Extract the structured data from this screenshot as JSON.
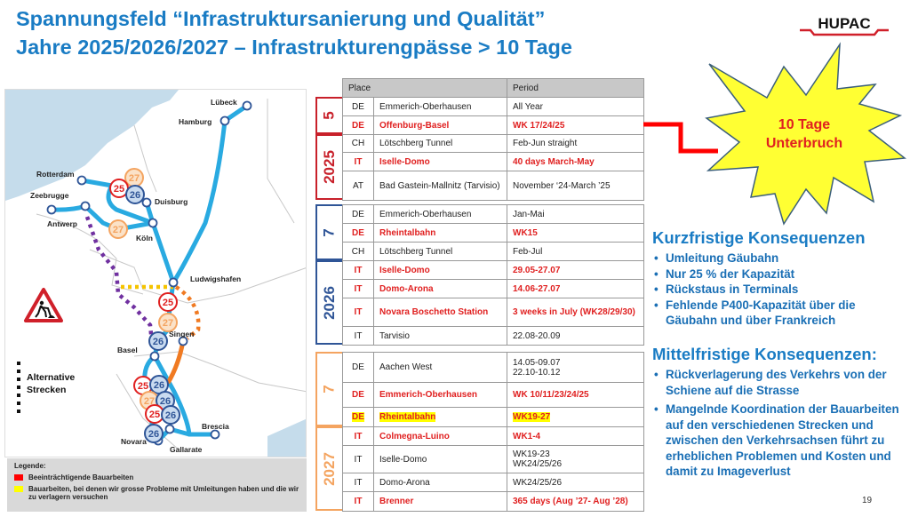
{
  "header": {
    "title_line1": "Spannungsfeld “Infrastruktursanierung und Qualität”",
    "title_line2": "Jahre 2025/2026/2027 – Infrastrukturengpässe > 10 Tage",
    "logo": "HUPAC"
  },
  "map": {
    "cities": [
      "Lübeck",
      "Hamburg",
      "Rotterdam",
      "Zeebrugge",
      "Antwerp",
      "Duisburg",
      "Köln",
      "Ludwigshafen",
      "Singen",
      "Basel",
      "Brescia",
      "Novara",
      "Gallarate"
    ],
    "badges": [
      "27",
      "25",
      "26",
      "27",
      "25",
      "27",
      "26",
      "25",
      "26",
      "27",
      "26",
      "25",
      "26",
      "26"
    ],
    "alt_label_1": "Alternative",
    "alt_label_2": "Strecken",
    "warning_icon": "road-works-sign",
    "line_color": "#29aae1"
  },
  "legend": {
    "title": "Legende:",
    "items": [
      {
        "color": "#ff0000",
        "label": "Beeinträchtigende Bauarbeiten"
      },
      {
        "color": "#ffff00",
        "label": "Bauarbeiten, bei denen wir grosse Probleme mit Umleitungen haben und die wir zu verlagern versuchen"
      }
    ]
  },
  "table": {
    "headers": [
      "Place",
      "Period"
    ],
    "groups": [
      {
        "year": "2025",
        "count": "5",
        "color": "#c8202a",
        "rows": [
          {
            "country": "DE",
            "place": "Emmerich-Oberhausen",
            "period": "All Year",
            "critical": false
          },
          {
            "country": "DE",
            "place": "Offenburg-Basel",
            "period": "WK 17/24/25",
            "critical": true
          },
          {
            "country": "CH",
            "place": "Lötschberg Tunnel",
            "period": "Feb-Jun straight",
            "critical": false
          },
          {
            "country": "IT",
            "place": "Iselle-Domo",
            "period": "40 days March-May",
            "critical": true
          },
          {
            "country": "AT",
            "place": "Bad Gastein-Mallnitz (Tarvisio)",
            "period": "November ‘24-March ’25",
            "critical": false
          }
        ]
      },
      {
        "year": "2026",
        "count": "7",
        "color": "#2f5597",
        "rows": [
          {
            "country": "DE",
            "place": "Emmerich-Oberhausen",
            "period": "Jan-Mai",
            "critical": false
          },
          {
            "country": "DE",
            "place": "Rheintalbahn",
            "period": "WK15",
            "critical": true
          },
          {
            "country": "CH",
            "place": "Lötschberg Tunnel",
            "period": "Feb-Jul",
            "critical": false
          },
          {
            "country": "IT",
            "place": "Iselle-Domo",
            "period": "29.05-27.07",
            "critical": true
          },
          {
            "country": "IT",
            "place": "Domo-Arona",
            "period": "14.06-27.07",
            "critical": true
          },
          {
            "country": "IT",
            "place": "Novara Boschetto Station",
            "period": "3 weeks in July (WK28/29/30)",
            "critical": true
          },
          {
            "country": "IT",
            "place": "Tarvisio",
            "period": "22.08-20.09",
            "critical": false
          }
        ]
      },
      {
        "year": "2027",
        "count": "7",
        "color": "#f4a460",
        "rows": [
          {
            "country": "DE",
            "place": "Aachen West",
            "period": "14.05-09.07\n22.10-10.12",
            "critical": false
          },
          {
            "country": "DE",
            "place": "Emmerich-Oberhausen",
            "period": "WK 10/11/23/24/25",
            "critical": true
          },
          {
            "country": "DE",
            "place": "Rheintalbahn",
            "period": "WK19-27",
            "critical": true,
            "highlight": true
          },
          {
            "country": "IT",
            "place": "Colmegna-Luino",
            "period": "WK1-4",
            "critical": true
          },
          {
            "country": "IT",
            "place": "Iselle-Domo",
            "period": "WK19-23\nWK24/25/26",
            "critical": false
          },
          {
            "country": "IT",
            "place": "Domo-Arona",
            "period": "WK24/25/26",
            "critical": false
          },
          {
            "country": "IT",
            "place": "Brenner",
            "period": "365 days (Aug ’27- Aug ’28)",
            "critical": true
          }
        ]
      }
    ]
  },
  "callout": {
    "line1": "10 Tage",
    "line2": "Unterbruch"
  },
  "short_term": {
    "title": "Kurzfristige Konsequenzen",
    "items": [
      "Umleitung Gäubahn",
      "Nur 25 % der Kapazität",
      "Rückstaus in Terminals",
      "Fehlende P400-Kapazität über die Gäubahn und über Frankreich"
    ]
  },
  "mid_term": {
    "title": "Mittelfristige Konsequenzen:",
    "items": [
      "Rückverlagerung des Verkehrs von der Schiene auf die Strasse",
      "Mangelnde Koordination der Bauarbeiten auf den verschiedenen Strecken und zwischen den Verkehrsachsen führt zu erheblichen Problemen und Kosten und damit zu Imageverlust"
    ]
  },
  "page_number": "19"
}
